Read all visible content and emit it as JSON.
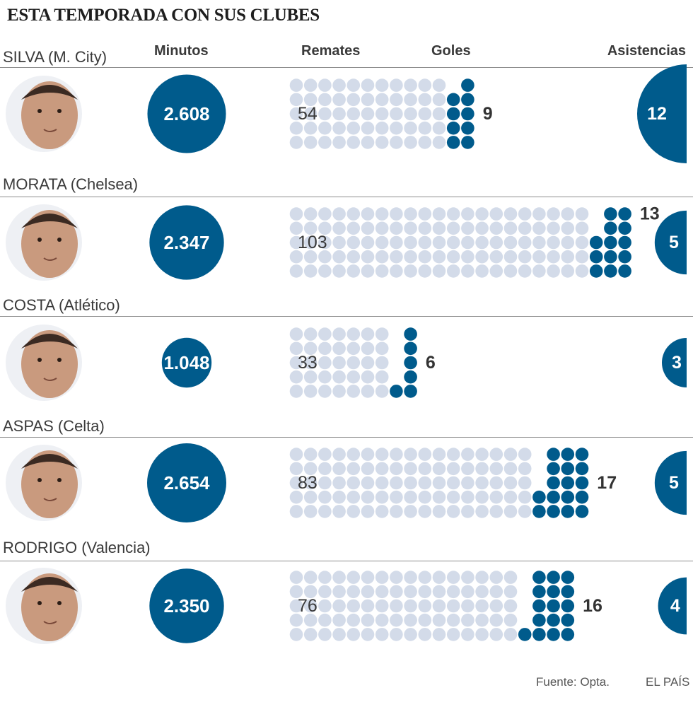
{
  "title": "ESTA TEMPORADA CON SUS CLUBES",
  "columns": {
    "minutos": "Minutos",
    "remates": "Remates",
    "goles": "Goles",
    "asistencias": "Asistencias"
  },
  "colors": {
    "accent": "#005b8c",
    "remate_dot": "#d3dbe9",
    "face_bg": "#eef0f4",
    "rule": "#8c8c8c"
  },
  "chart_data": {
    "type": "pictogram",
    "title": "ESTA TEMPORADA CON SUS CLUBES",
    "players": [
      {
        "name": "SILVA (M. City)",
        "minutos": 2608,
        "minutos_label": "2.608",
        "remates": 54,
        "goles": 9,
        "asistencias": 12
      },
      {
        "name": "MORATA (Chelsea)",
        "minutos": 2347,
        "minutos_label": "2.347",
        "remates": 103,
        "goles": 13,
        "asistencias": 5
      },
      {
        "name": "COSTA (Atlético)",
        "minutos": 1048,
        "minutos_label": "1.048",
        "remates": 33,
        "goles": 6,
        "asistencias": 3
      },
      {
        "name": "ASPAS (Celta)",
        "minutos": 2654,
        "minutos_label": "2.654",
        "remates": 83,
        "goles": 17,
        "asistencias": 5
      },
      {
        "name": "RODRIGO (Valencia)",
        "minutos": 2350,
        "minutos_label": "2.350",
        "remates": 76,
        "goles": 16,
        "asistencias": 4
      }
    ]
  },
  "footer": {
    "source": "Fuente: Opta.",
    "brand": "EL PAÍS"
  }
}
